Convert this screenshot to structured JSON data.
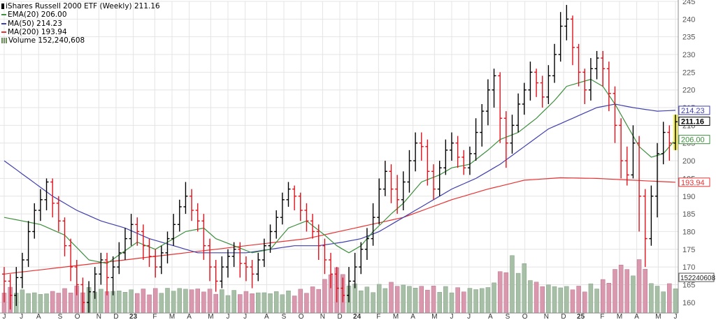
{
  "colors": {
    "price": "#000000",
    "down": "#e0101a",
    "ema": "#3d8f3d",
    "ma50": "#3f3fae",
    "ma200": "#e83232",
    "vol_up": "#a6bfa6",
    "vol_down": "#d998ad",
    "grid": "#e4e4e4",
    "last_highlight": "#f5f04a"
  },
  "legend": {
    "title": "iShares Russell 2000 ETF (Weekly) 211.16",
    "ema": "EMA(20) 206.00",
    "ma50": "MA(50) 214.23",
    "ma200": "MA(200) 193.94",
    "volume": "Volume 152,240,608"
  },
  "chart_data": {
    "type": "ohlc",
    "title": "iShares Russell 2000 ETF (Weekly) 211.16",
    "xlabel": "",
    "ylabel": "",
    "ylim": [
      157,
      245
    ],
    "grid": true,
    "legend_position": "top-left",
    "y_ticks": [
      160,
      165,
      170,
      175,
      180,
      185,
      190,
      195,
      200,
      205,
      210,
      215,
      220,
      225,
      230,
      235,
      240,
      245
    ],
    "x_ticks": [
      "J",
      "J",
      "A",
      "S",
      "O",
      "N",
      "D",
      "23",
      "F",
      "M",
      "A",
      "M",
      "J",
      "J",
      "A",
      "S",
      "O",
      "N",
      "D",
      "24",
      "F",
      "M",
      "A",
      "M",
      "J",
      "J",
      "A",
      "S",
      "O",
      "N",
      "D",
      "25",
      "F",
      "M",
      "A",
      "M",
      "J"
    ],
    "x_tick_weeks": [
      0,
      4,
      8,
      13,
      17,
      22,
      26,
      30,
      35,
      39,
      43,
      48,
      52,
      56,
      61,
      65,
      69,
      74,
      78,
      82,
      87,
      91,
      95,
      100,
      104,
      108,
      113,
      117,
      121,
      126,
      130,
      134,
      139,
      143,
      147,
      152,
      156
    ],
    "price_labels": [
      {
        "text": "214.23",
        "value": 214.23,
        "color": "#3f3fae"
      },
      {
        "text": "211.16",
        "value": 211.16,
        "color": "#000000"
      },
      {
        "text": "206.00",
        "value": 206.0,
        "color": "#3d8f3d"
      },
      {
        "text": "193.94",
        "value": 193.94,
        "color": "#e83232"
      }
    ],
    "volume_label": "152240608",
    "volume_axis_max": 360000000,
    "ohlc_anchors": [
      [
        0,
        168,
        166,
        170,
        160
      ],
      [
        1,
        166,
        162,
        168,
        158
      ],
      [
        2,
        162,
        167,
        170,
        159
      ],
      [
        3,
        167,
        172,
        174,
        164
      ],
      [
        4,
        172,
        180,
        183,
        170
      ],
      [
        5,
        180,
        186,
        188,
        178
      ],
      [
        6,
        186,
        189,
        192,
        183
      ],
      [
        7,
        189,
        194,
        195,
        186
      ],
      [
        8,
        194,
        188,
        195,
        184
      ],
      [
        9,
        188,
        183,
        190,
        180
      ],
      [
        10,
        183,
        176,
        184,
        173
      ],
      [
        11,
        176,
        170,
        178,
        166
      ],
      [
        12,
        170,
        165,
        172,
        162
      ],
      [
        13,
        165,
        160,
        167,
        157
      ],
      [
        14,
        160,
        163,
        166,
        157
      ],
      [
        15,
        163,
        168,
        170,
        161
      ],
      [
        16,
        168,
        172,
        174,
        165
      ],
      [
        17,
        172,
        167,
        174,
        162
      ],
      [
        18,
        167,
        170,
        173,
        162
      ],
      [
        19,
        170,
        174,
        177,
        168
      ],
      [
        20,
        174,
        178,
        181,
        172
      ],
      [
        21,
        178,
        182,
        185,
        176
      ],
      [
        22,
        182,
        180,
        184,
        176
      ],
      [
        23,
        180,
        176,
        182,
        172
      ],
      [
        24,
        176,
        173,
        178,
        170
      ],
      [
        25,
        173,
        170,
        175,
        167
      ],
      [
        26,
        170,
        174,
        176,
        168
      ],
      [
        27,
        174,
        178,
        180,
        171
      ],
      [
        28,
        178,
        182,
        185,
        176
      ],
      [
        29,
        182,
        187,
        189,
        180
      ],
      [
        30,
        187,
        190,
        194,
        185
      ],
      [
        31,
        190,
        186,
        192,
        183
      ],
      [
        32,
        186,
        183,
        188,
        180
      ],
      [
        33,
        183,
        176,
        185,
        172
      ],
      [
        34,
        176,
        170,
        178,
        166
      ],
      [
        35,
        170,
        166,
        172,
        163
      ],
      [
        36,
        166,
        170,
        173,
        164
      ],
      [
        37,
        170,
        173,
        175,
        167
      ],
      [
        38,
        173,
        175,
        177,
        170
      ],
      [
        39,
        175,
        171,
        177,
        167
      ],
      [
        40,
        171,
        170,
        173,
        166
      ],
      [
        41,
        170,
        168,
        172,
        164
      ],
      [
        42,
        168,
        172,
        174,
        166
      ],
      [
        43,
        172,
        176,
        178,
        170
      ],
      [
        44,
        176,
        180,
        182,
        174
      ],
      [
        45,
        180,
        184,
        186,
        178
      ],
      [
        46,
        184,
        189,
        191,
        182
      ],
      [
        47,
        189,
        192,
        194,
        187
      ],
      [
        48,
        192,
        190,
        193,
        186
      ],
      [
        49,
        190,
        186,
        191,
        183
      ],
      [
        50,
        186,
        183,
        188,
        180
      ],
      [
        51,
        183,
        180,
        185,
        178
      ],
      [
        52,
        180,
        176,
        182,
        172
      ],
      [
        53,
        176,
        172,
        178,
        168
      ],
      [
        54,
        172,
        168,
        174,
        164
      ],
      [
        55,
        168,
        164,
        170,
        160
      ],
      [
        56,
        164,
        162,
        167,
        160
      ],
      [
        57,
        162,
        166,
        170,
        160
      ],
      [
        58,
        166,
        170,
        174,
        164
      ],
      [
        59,
        170,
        175,
        177,
        168
      ],
      [
        60,
        175,
        178,
        181,
        172
      ],
      [
        61,
        178,
        184,
        188,
        176
      ],
      [
        62,
        184,
        192,
        195,
        182
      ],
      [
        63,
        192,
        197,
        200,
        190
      ],
      [
        64,
        197,
        192,
        199,
        188
      ],
      [
        65,
        192,
        189,
        196,
        185
      ],
      [
        66,
        189,
        194,
        197,
        186
      ],
      [
        67,
        194,
        200,
        203,
        191
      ],
      [
        68,
        200,
        205,
        208,
        197
      ],
      [
        69,
        205,
        204,
        208,
        200
      ],
      [
        70,
        204,
        197,
        206,
        193
      ],
      [
        71,
        197,
        192,
        199,
        189
      ],
      [
        72,
        192,
        198,
        200,
        190
      ],
      [
        73,
        198,
        203,
        206,
        196
      ],
      [
        74,
        203,
        205,
        208,
        200
      ],
      [
        75,
        205,
        201,
        207,
        198
      ],
      [
        76,
        201,
        198,
        203,
        196
      ],
      [
        77,
        198,
        202,
        204,
        196
      ],
      [
        78,
        202,
        208,
        212,
        200
      ],
      [
        79,
        208,
        214,
        216,
        204
      ],
      [
        80,
        214,
        220,
        223,
        210
      ],
      [
        81,
        220,
        224,
        226,
        215
      ],
      [
        82,
        224,
        212,
        225,
        205
      ],
      [
        83,
        212,
        205,
        214,
        198
      ],
      [
        84,
        205,
        210,
        213,
        202
      ],
      [
        85,
        210,
        216,
        219,
        208
      ],
      [
        86,
        216,
        220,
        222,
        213
      ],
      [
        87,
        220,
        225,
        228,
        217
      ],
      [
        88,
        225,
        222,
        226,
        218
      ],
      [
        89,
        222,
        218,
        224,
        215
      ],
      [
        90,
        218,
        224,
        227,
        216
      ],
      [
        91,
        224,
        230,
        233,
        222
      ],
      [
        92,
        230,
        238,
        242,
        228
      ],
      [
        93,
        238,
        240,
        244,
        234
      ],
      [
        94,
        240,
        232,
        241,
        227
      ],
      [
        95,
        232,
        225,
        233,
        221
      ],
      [
        96,
        225,
        220,
        226,
        216
      ],
      [
        97,
        220,
        226,
        229,
        217
      ],
      [
        98,
        226,
        229,
        231,
        223
      ],
      [
        99,
        229,
        226,
        231,
        221
      ],
      [
        100,
        226,
        219,
        228,
        214
      ],
      [
        101,
        219,
        210,
        221,
        205
      ],
      [
        102,
        210,
        200,
        212,
        195
      ],
      [
        103,
        200,
        196,
        204,
        193
      ],
      [
        104,
        196,
        205,
        210,
        195
      ],
      [
        105,
        205,
        190,
        207,
        180
      ],
      [
        106,
        190,
        178,
        192,
        170
      ],
      [
        107,
        178,
        190,
        193,
        176
      ],
      [
        108,
        190,
        202,
        205,
        184
      ],
      [
        109,
        202,
        208,
        211,
        199
      ],
      [
        110,
        208,
        205,
        210,
        200
      ],
      [
        111,
        205,
        211,
        213,
        203
      ]
    ],
    "ema20_anchors": [
      [
        0,
        184
      ],
      [
        6,
        182
      ],
      [
        10,
        179
      ],
      [
        14,
        172
      ],
      [
        17,
        171
      ],
      [
        22,
        177
      ],
      [
        25,
        175
      ],
      [
        30,
        180
      ],
      [
        33,
        181
      ],
      [
        35,
        178
      ],
      [
        38,
        176
      ],
      [
        41,
        174
      ],
      [
        44,
        175
      ],
      [
        47,
        181
      ],
      [
        50,
        183
      ],
      [
        53,
        179
      ],
      [
        55,
        176
      ],
      [
        57,
        174
      ],
      [
        59,
        176
      ],
      [
        61,
        180
      ],
      [
        64,
        185
      ],
      [
        66,
        188
      ],
      [
        69,
        194
      ],
      [
        72,
        196
      ],
      [
        74,
        198
      ],
      [
        77,
        199
      ],
      [
        80,
        203
      ],
      [
        82,
        206
      ],
      [
        85,
        208
      ],
      [
        88,
        212
      ],
      [
        91,
        217
      ],
      [
        93,
        221
      ],
      [
        95,
        222
      ],
      [
        97,
        223
      ],
      [
        99,
        221
      ],
      [
        101,
        216
      ],
      [
        103,
        210
      ],
      [
        105,
        204
      ],
      [
        107,
        201
      ],
      [
        109,
        202
      ],
      [
        111,
        206
      ]
    ],
    "ma50_anchors": [
      [
        0,
        200
      ],
      [
        4,
        195
      ],
      [
        8,
        190
      ],
      [
        12,
        186
      ],
      [
        16,
        183
      ],
      [
        20,
        181
      ],
      [
        24,
        178
      ],
      [
        28,
        176
      ],
      [
        32,
        174
      ],
      [
        36,
        174
      ],
      [
        40,
        174
      ],
      [
        44,
        175
      ],
      [
        48,
        176
      ],
      [
        52,
        176
      ],
      [
        56,
        177
      ],
      [
        59,
        178
      ],
      [
        62,
        180
      ],
      [
        66,
        184
      ],
      [
        70,
        188
      ],
      [
        74,
        192
      ],
      [
        78,
        195
      ],
      [
        82,
        199
      ],
      [
        86,
        204
      ],
      [
        90,
        209
      ],
      [
        94,
        212
      ],
      [
        98,
        215
      ],
      [
        101,
        216
      ],
      [
        104,
        215
      ],
      [
        108,
        214
      ],
      [
        111,
        214.23
      ]
    ],
    "ma200_anchors": [
      [
        0,
        168
      ],
      [
        10,
        170
      ],
      [
        20,
        172
      ],
      [
        30,
        174
      ],
      [
        40,
        176
      ],
      [
        50,
        178
      ],
      [
        58,
        181
      ],
      [
        66,
        184
      ],
      [
        74,
        189
      ],
      [
        80,
        192
      ],
      [
        86,
        194.5
      ],
      [
        92,
        195.2
      ],
      [
        98,
        195
      ],
      [
        104,
        194.5
      ],
      [
        111,
        193.94
      ]
    ],
    "volume_anchors": [
      [
        0,
        60
      ],
      [
        6,
        45
      ],
      [
        12,
        60
      ],
      [
        18,
        52
      ],
      [
        24,
        54
      ],
      [
        30,
        58
      ],
      [
        36,
        52
      ],
      [
        42,
        48
      ],
      [
        48,
        50
      ],
      [
        52,
        62
      ],
      [
        55,
        110
      ],
      [
        57,
        70
      ],
      [
        60,
        58
      ],
      [
        64,
        70
      ],
      [
        68,
        62
      ],
      [
        72,
        60
      ],
      [
        76,
        56
      ],
      [
        80,
        60
      ],
      [
        84,
        128
      ],
      [
        86,
        110
      ],
      [
        88,
        70
      ],
      [
        92,
        62
      ],
      [
        96,
        60
      ],
      [
        100,
        80
      ],
      [
        102,
        120
      ],
      [
        104,
        88
      ],
      [
        105,
        135
      ],
      [
        106,
        100
      ],
      [
        108,
        60
      ],
      [
        111,
        68
      ]
    ]
  }
}
